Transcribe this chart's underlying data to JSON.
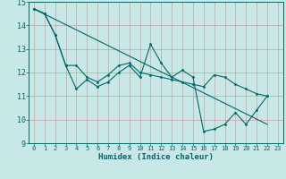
{
  "xlabel": "Humidex (Indice chaleur)",
  "xlim": [
    -0.5,
    23.5
  ],
  "ylim": [
    9,
    15
  ],
  "yticks": [
    9,
    10,
    11,
    12,
    13,
    14,
    15
  ],
  "xticks": [
    0,
    1,
    2,
    3,
    4,
    5,
    6,
    7,
    8,
    9,
    10,
    11,
    12,
    13,
    14,
    15,
    16,
    17,
    18,
    19,
    20,
    21,
    22,
    23
  ],
  "bg_color": "#c8e8e8",
  "grid_color_h": "#c8a0a0",
  "grid_color_v": "#c8a0a0",
  "line_color": "#006868",
  "tick_color": "#006868",
  "series": {
    "line1_x": [
      0,
      1,
      2,
      3,
      4,
      5,
      6,
      7,
      8,
      9,
      10,
      11,
      12,
      13,
      14,
      15,
      16,
      17,
      18,
      19,
      20,
      21,
      22
    ],
    "line1_y": [
      14.7,
      14.5,
      13.6,
      12.3,
      11.3,
      11.7,
      11.4,
      11.6,
      12.0,
      12.3,
      11.8,
      13.2,
      12.4,
      11.8,
      12.1,
      11.8,
      9.5,
      9.6,
      9.8,
      10.3,
      9.8,
      10.4,
      11.0
    ],
    "line2_x": [
      0,
      1,
      2,
      3,
      4,
      5,
      6,
      7,
      8,
      9,
      10,
      11,
      12,
      13,
      14,
      15,
      16,
      17,
      18,
      19,
      20,
      21,
      22
    ],
    "line2_y": [
      14.7,
      14.5,
      13.6,
      12.3,
      12.3,
      11.8,
      11.6,
      11.9,
      12.3,
      12.4,
      12.0,
      11.9,
      11.8,
      11.7,
      11.6,
      11.5,
      11.4,
      11.9,
      11.8,
      11.5,
      11.3,
      11.1,
      11.0
    ],
    "line3_x": [
      0,
      22
    ],
    "line3_y": [
      14.7,
      9.8
    ]
  }
}
